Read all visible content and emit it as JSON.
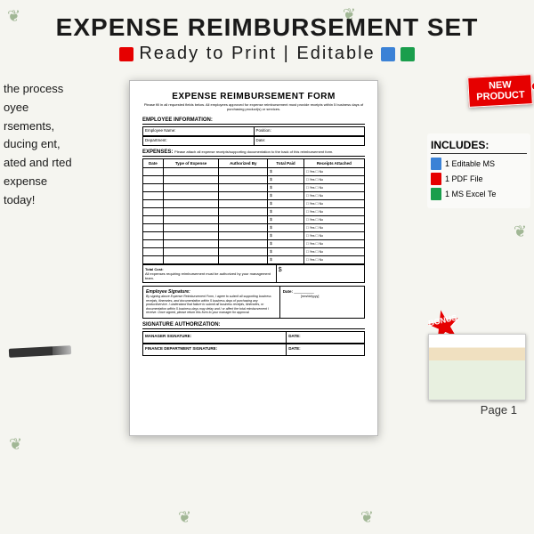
{
  "header": {
    "title": "EXPENSE REIMBURSEMENT SET",
    "subtitle": "Ready to Print | Editable"
  },
  "leftText": "the process oyee rsements, ducing ent, ated and rted expense today!",
  "newTag": {
    "line1": "NEW",
    "line2": "PRODUCT"
  },
  "includes": {
    "heading": "INCLUDES:",
    "items": [
      "1 Editable MS",
      "1 PDF File",
      "1 MS Excel Te"
    ]
  },
  "bonus": {
    "label": "BONUS",
    "page": "Page 1"
  },
  "form": {
    "title": "EXPENSE REIMBURSEMENT FORM",
    "subtitle": "Please fill in all requested fields below. All employees approved for expense reimbursement must provide receipts within 5 business days of purchasing product(s) or services.",
    "sect1": "EMPLOYEE INFORMATION:",
    "emp": {
      "name": "Employee Name:",
      "pos": "Position:",
      "dept": "Department:",
      "date": "Date:"
    },
    "sect2": "EXPENSES:",
    "expNote": "Please attach all expense receipts/supporting documentation to the back of this reimbursement form.",
    "cols": [
      "Date",
      "Type of Expense",
      "Authorized By",
      "Total Paid",
      "Receipts Attached"
    ],
    "dollars": "$",
    "yn": "☐ Yes  ☐ No",
    "totalLabel": "Total Cost:",
    "totalNote": "All expenses requiring reimbursement must be authorized by your management team.",
    "empSig": "Employee Signature:",
    "sigNote": "By signing above Expense Reimbursement Form, I agree to submit all supporting business receipts, itineraries, and documentation within 5 business days of purchasing any product/service. I understand that failure to submit all business receipts, itineraries, or documentation within 5 business days may delay and / or affect the total reimbursement I receive. Once signed, please return this form to your manager for approval.",
    "dateL": "Date:",
    "dateF": "[mm/dd/yyyy]",
    "sect3": "SIGNATURE AUTHORIZATION:",
    "mgr": "MANAGER SIGNATURE:",
    "fin": "FINANCE DEPARTMENT SIGNATURE:",
    "dl": "DATE:"
  },
  "colors": {
    "red": "#e60000",
    "green": "#1a9e4c",
    "blue": "#3b82d6",
    "bg": "#f5f5f0"
  }
}
